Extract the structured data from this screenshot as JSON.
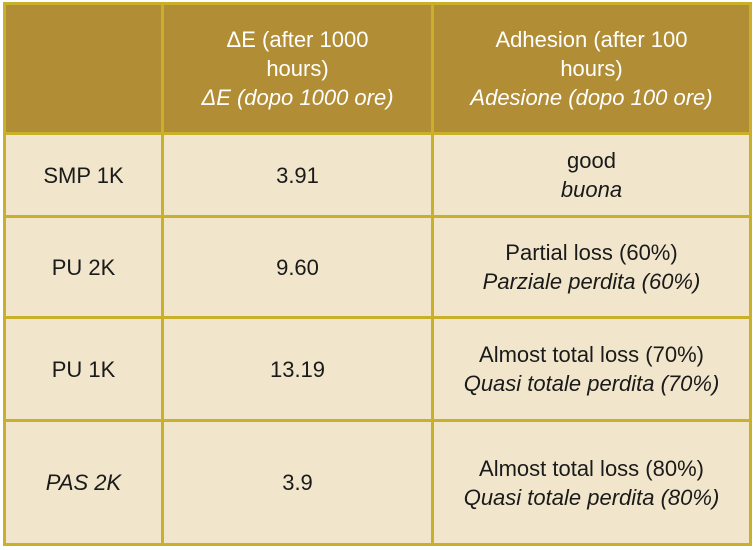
{
  "header": {
    "col_label": "",
    "delta_e": [
      "ΔE (after 1000",
      "hours)"
    ],
    "delta_e_it": "ΔE (dopo 1000 ore)",
    "adhesion": [
      "Adhesion (after 100",
      "hours)"
    ],
    "adhesion_it": "Adesione (dopo 100 ore)"
  },
  "rows": [
    {
      "name": "SMP 1K",
      "delta_e": "3.91",
      "adhesion_en": "good",
      "adhesion_it": "buona"
    },
    {
      "name": "PU 2K",
      "delta_e": "9.60",
      "adhesion_en": "Partial loss (60%)",
      "adhesion_it": "Parziale perdita (60%)"
    },
    {
      "name": "PU 1K",
      "delta_e": "13.19",
      "adhesion_en": "Almost total loss (70%)",
      "adhesion_it": "Quasi totale perdita (70%)"
    },
    {
      "name": "PAS 2K",
      "delta_e": "3.9",
      "adhesion_en": "Almost total loss (80%)",
      "adhesion_it": "Quasi totale perdita (80%)"
    }
  ],
  "colors": {
    "header_bg": "#b18e36",
    "body_bg": "#f1e6cc",
    "border": "#c9b02a",
    "header_text": "#ffffff"
  }
}
